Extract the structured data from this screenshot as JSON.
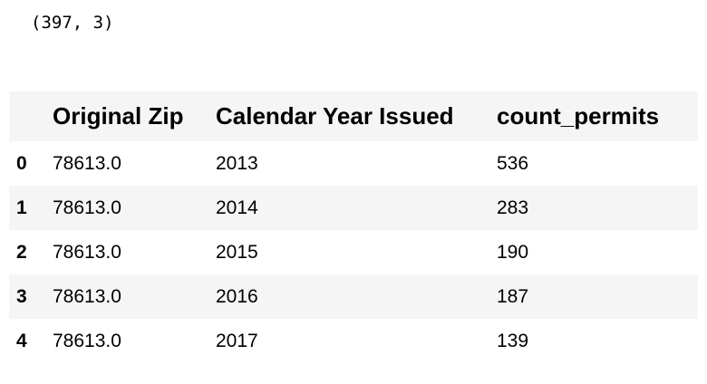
{
  "output": {
    "shape_text": "(397, 3)"
  },
  "dataframe": {
    "index_header": "",
    "columns": [
      "Original Zip",
      "Calendar Year Issued",
      "count_permits"
    ],
    "rows": [
      {
        "index": "0",
        "values": [
          "78613.0",
          "2013",
          "536"
        ]
      },
      {
        "index": "1",
        "values": [
          "78613.0",
          "2014",
          "283"
        ]
      },
      {
        "index": "2",
        "values": [
          "78613.0",
          "2015",
          "190"
        ]
      },
      {
        "index": "3",
        "values": [
          "78613.0",
          "2016",
          "187"
        ]
      },
      {
        "index": "4",
        "values": [
          "78613.0",
          "2017",
          "139"
        ]
      }
    ]
  },
  "colors": {
    "header_bg": "#f5f5f5",
    "stripe_bg": "#f5f5f5",
    "text": "#000000"
  }
}
